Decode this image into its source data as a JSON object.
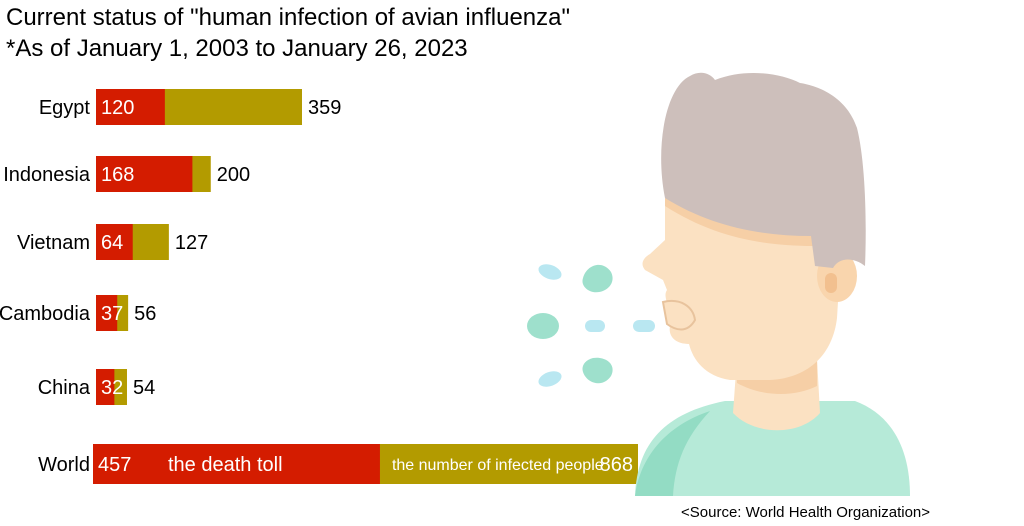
{
  "title": "Current status of \"human infection of avian influenza\"",
  "subtitle": "*As of January 1, 2003 to January 26, 2023",
  "source": "<Source: World Health Organization>",
  "colors": {
    "death": "#d41c00",
    "infected": "#b39b00"
  },
  "chart_data": {
    "type": "bar",
    "orientation": "horizontal",
    "stacking": "overlay",
    "categories": [
      "Egypt",
      "Indonesia",
      "Vietnam",
      "Cambodia",
      "China",
      "World"
    ],
    "series": [
      {
        "name": "the death toll",
        "values": [
          120,
          168,
          64,
          37,
          32,
          457
        ]
      },
      {
        "name": "the number of infected people",
        "values": [
          359,
          200,
          127,
          56,
          54,
          868
        ]
      }
    ],
    "country_scale_max": 359,
    "world_scale_max": 868,
    "grid": false,
    "legend": "inside-world-bar"
  }
}
